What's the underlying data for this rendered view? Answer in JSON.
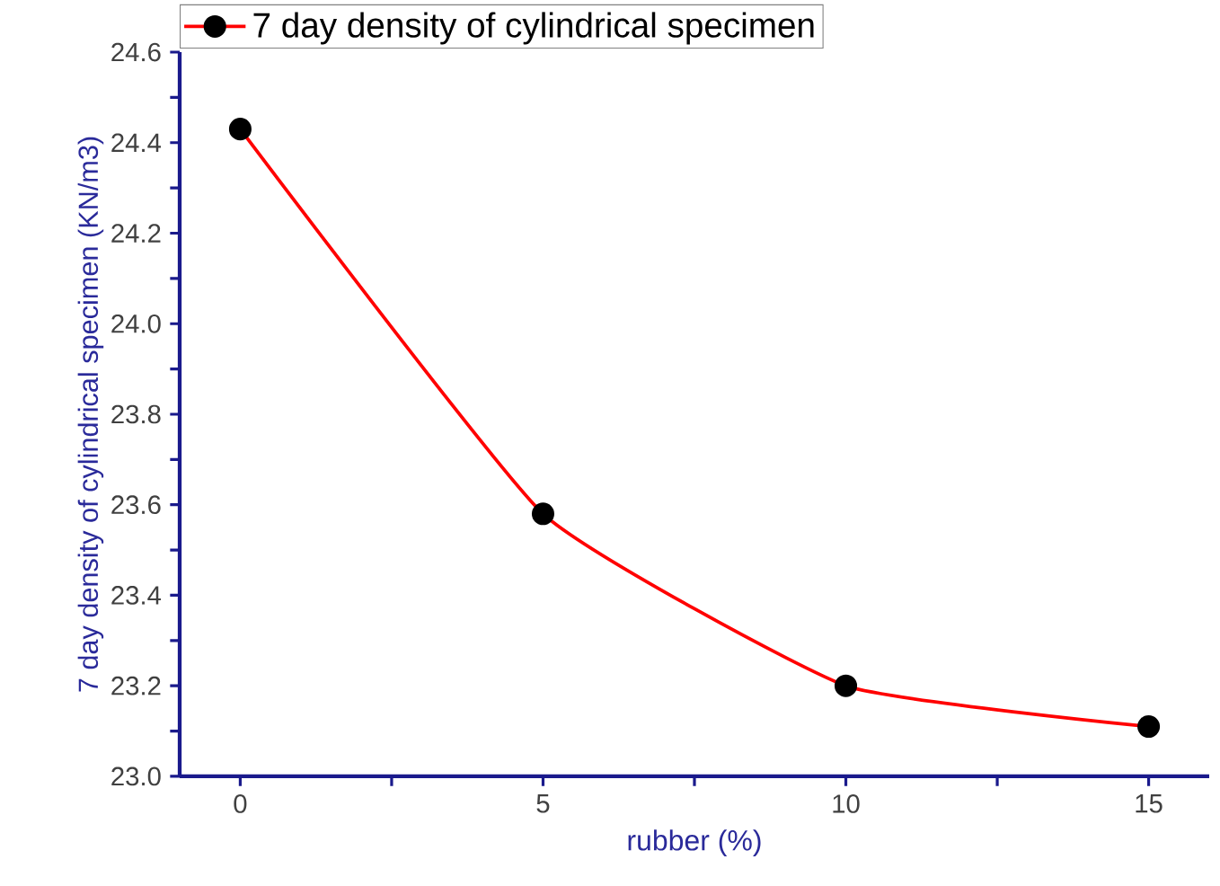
{
  "chart_data": {
    "type": "line",
    "xlabel": "rubber (%)",
    "ylabel": "7 day density of cylindrical specimen (KN/m3)",
    "x": [
      0,
      5,
      10,
      15
    ],
    "series": [
      {
        "name": "7 day density of cylindrical specimen",
        "color": "#ff0000",
        "values": [
          24.43,
          23.58,
          23.2,
          23.11
        ]
      }
    ],
    "xlim": [
      -1,
      16
    ],
    "ylim": [
      23.0,
      24.6
    ],
    "xticks": [
      0,
      {
        "value": 2.5,
        "label": null
      },
      5,
      {
        "value": 7.5,
        "label": null
      },
      10,
      {
        "value": 12.5,
        "label": null
      },
      15
    ],
    "yticks": [
      {
        "value": 23.0,
        "label": "23.0"
      },
      {
        "value": 23.1,
        "label": null
      },
      23.2,
      {
        "value": 23.3,
        "label": null
      },
      23.4,
      {
        "value": 23.5,
        "label": null
      },
      23.6,
      {
        "value": 23.7,
        "label": null
      },
      23.8,
      {
        "value": 23.9,
        "label": null
      },
      {
        "value": 24.0,
        "label": "24.0"
      },
      {
        "value": 24.1,
        "label": null
      },
      24.2,
      {
        "value": 24.3,
        "label": null
      },
      24.4,
      {
        "value": 24.5,
        "label": null
      },
      24.6
    ],
    "marker": "circle",
    "line_style": "solid",
    "grid": false,
    "legend": "top"
  }
}
